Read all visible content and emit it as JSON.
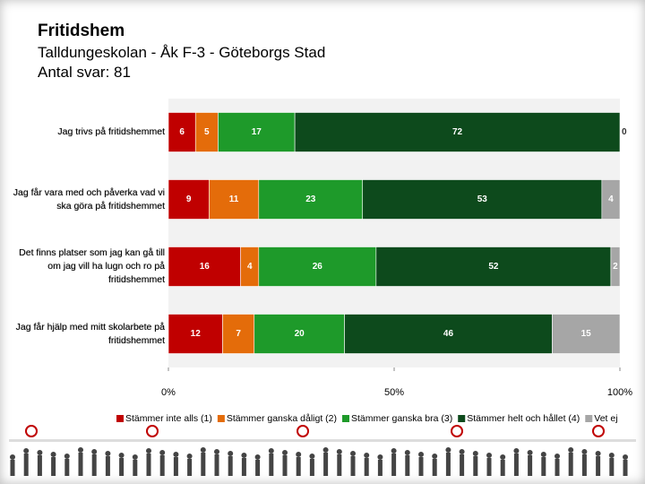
{
  "chart_data": {
    "type": "stacked-barh",
    "title": "Fritidshem",
    "subtitle": "Talldungeskolan - Åk F-3 - Göteborgs Stad",
    "responses": "Antal svar: 81",
    "categories": [
      "Jag trivs på fritidshemmet",
      "Jag får vara med och påverka vad vi ska göra på fritidshemmet",
      "Det finns platser som jag kan gå till om jag vill ha lugn och ro på fritidshemmet",
      "Jag får hjälp med mitt skolarbete på fritidshemmet"
    ],
    "series": [
      {
        "name": "Stämmer inte alls (1)",
        "color": "#c00000",
        "values": [
          6,
          9,
          16,
          12
        ]
      },
      {
        "name": "Stämmer ganska dåligt (2)",
        "color": "#e46c0a",
        "values": [
          5,
          11,
          4,
          7
        ]
      },
      {
        "name": "Stämmer ganska bra (3)",
        "color": "#1e9a2a",
        "values": [
          17,
          23,
          26,
          20
        ]
      },
      {
        "name": "Stämmer helt och hållet (4)",
        "color": "#0d4a1c",
        "values": [
          72,
          53,
          52,
          46
        ]
      },
      {
        "name": "Vet ej",
        "color": "#a6a6a6",
        "values": [
          0,
          4,
          2,
          15
        ]
      }
    ],
    "xlim": [
      0,
      100
    ],
    "xticks": [
      {
        "value": 0,
        "label": "0%"
      },
      {
        "value": 50,
        "label": "50%"
      },
      {
        "value": 100,
        "label": "100%"
      }
    ],
    "legend": "bottom"
  }
}
